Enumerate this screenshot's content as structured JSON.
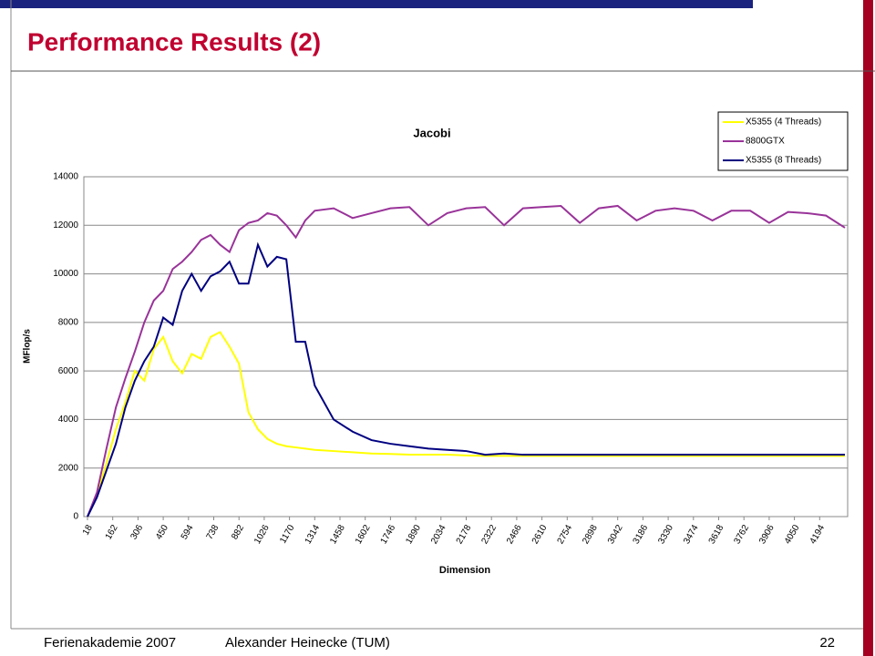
{
  "slide": {
    "title": "Performance Results (2)",
    "footer_left": "Ferienakademie 2007",
    "footer_author": "Alexander Heinecke (TUM)",
    "page": 22
  },
  "chart_data": {
    "type": "line",
    "title": "Jacobi",
    "x_label": "Dimension",
    "y_label": "MFlop/s",
    "legend": "upper right",
    "grid": true,
    "x": [
      18,
      72,
      126,
      180,
      234,
      288,
      342,
      396,
      450,
      504,
      558,
      612,
      666,
      720,
      774,
      828,
      882,
      936,
      990,
      1044,
      1098,
      1152,
      1206,
      1260,
      1314,
      1422,
      1530,
      1638,
      1746,
      1854,
      1962,
      2070,
      2178,
      2286,
      2394,
      2502,
      2610,
      2718,
      2826,
      2934,
      3042,
      3150,
      3258,
      3366,
      3474,
      3582,
      3690,
      3798,
      3906,
      4014,
      4122,
      4230,
      4338
    ],
    "series": [
      {
        "name": "X5355 (4 Threads)",
        "color": "#ffff00",
        "values": [
          0,
          900,
          2200,
          3600,
          4700,
          6000,
          5600,
          6900,
          7400,
          6400,
          5900,
          6700,
          6500,
          7400,
          7600,
          7000,
          6300,
          4300,
          3600,
          3200,
          3000,
          2900,
          2850,
          2800,
          2750,
          2700,
          2650,
          2600,
          2580,
          2550,
          2550,
          2550,
          2520,
          2500,
          2500,
          2500,
          2500,
          2500,
          2500,
          2500,
          2500,
          2500,
          2500,
          2500,
          2500,
          2500,
          2500,
          2500,
          2500,
          2500,
          2500,
          2500,
          2500
        ]
      },
      {
        "name": "8800GTX",
        "color": "#993399",
        "values": [
          0,
          1000,
          2800,
          4500,
          5700,
          6800,
          8000,
          8900,
          9300,
          10200,
          10500,
          10900,
          11400,
          11600,
          11200,
          10900,
          11800,
          12100,
          12200,
          12500,
          12400,
          12000,
          11500,
          12200,
          12600,
          12700,
          12300,
          12500,
          12700,
          12750,
          12000,
          12500,
          12700,
          12750,
          12000,
          12700,
          12750,
          12800,
          12100,
          12700,
          12800,
          12200,
          12600,
          12700,
          12600,
          12200,
          12600,
          12600,
          12100,
          12550,
          12500,
          12400,
          11900
        ]
      },
      {
        "name": "X5355 (8 Threads)",
        "color": "#000080",
        "values": [
          0,
          800,
          1900,
          3000,
          4500,
          5600,
          6400,
          7000,
          8200,
          7900,
          9300,
          10000,
          9300,
          9900,
          10100,
          10500,
          9600,
          9600,
          11200,
          10300,
          10700,
          10600,
          7200,
          7200,
          5400,
          4000,
          3500,
          3150,
          3000,
          2900,
          2800,
          2750,
          2700,
          2550,
          2600,
          2550,
          2550,
          2550,
          2550,
          2550,
          2550,
          2550,
          2550,
          2550,
          2550,
          2550,
          2550,
          2550,
          2550,
          2550,
          2550,
          2550,
          2550
        ]
      }
    ],
    "xlim": [
      18,
      4338
    ],
    "xticks": [
      18,
      162,
      306,
      450,
      594,
      738,
      882,
      1026,
      1170,
      1314,
      1458,
      1602,
      1746,
      1890,
      2034,
      2178,
      2322,
      2466,
      2610,
      2754,
      2898,
      3042,
      3186,
      3330,
      3474,
      3618,
      3762,
      3906,
      4050,
      4194
    ],
    "ylim": [
      0,
      14000
    ],
    "yticks": [
      0,
      2000,
      4000,
      6000,
      8000,
      10000,
      12000,
      14000
    ]
  }
}
